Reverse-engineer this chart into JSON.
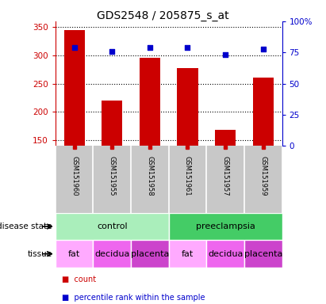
{
  "title": "GDS2548 / 205875_s_at",
  "samples": [
    "GSM151960",
    "GSM151955",
    "GSM151958",
    "GSM151961",
    "GSM151957",
    "GSM151959"
  ],
  "counts": [
    345,
    220,
    295,
    277,
    168,
    260
  ],
  "percentile_ranks": [
    79,
    76,
    79,
    79,
    73,
    78
  ],
  "ylim_left": [
    140,
    360
  ],
  "ylim_right": [
    0,
    100
  ],
  "yticks_left": [
    150,
    200,
    250,
    300,
    350
  ],
  "yticks_right": [
    0,
    25,
    50,
    75,
    100
  ],
  "bar_color": "#cc0000",
  "dot_color": "#0000cc",
  "bar_width": 0.55,
  "disease_state_groups": [
    {
      "label": "control",
      "start": 0,
      "end": 3,
      "color": "#aaeebb"
    },
    {
      "label": "preeclampsia",
      "start": 3,
      "end": 6,
      "color": "#44cc66"
    }
  ],
  "tissue": [
    "fat",
    "decidua",
    "placenta",
    "fat",
    "decidua",
    "placenta"
  ],
  "tissue_colors_map": {
    "fat": "#ffaaff",
    "decidua": "#ee66ee",
    "placenta": "#cc44cc"
  },
  "grid_color": "black",
  "legend_count_color": "#cc0000",
  "legend_pct_color": "#0000cc",
  "left_axis_color": "#cc0000",
  "right_axis_color": "#0000cc",
  "sample_area_bg": "#c8c8c8",
  "disease_state_label_fontsize": 8,
  "tissue_label_fontsize": 8,
  "title_fontsize": 10
}
